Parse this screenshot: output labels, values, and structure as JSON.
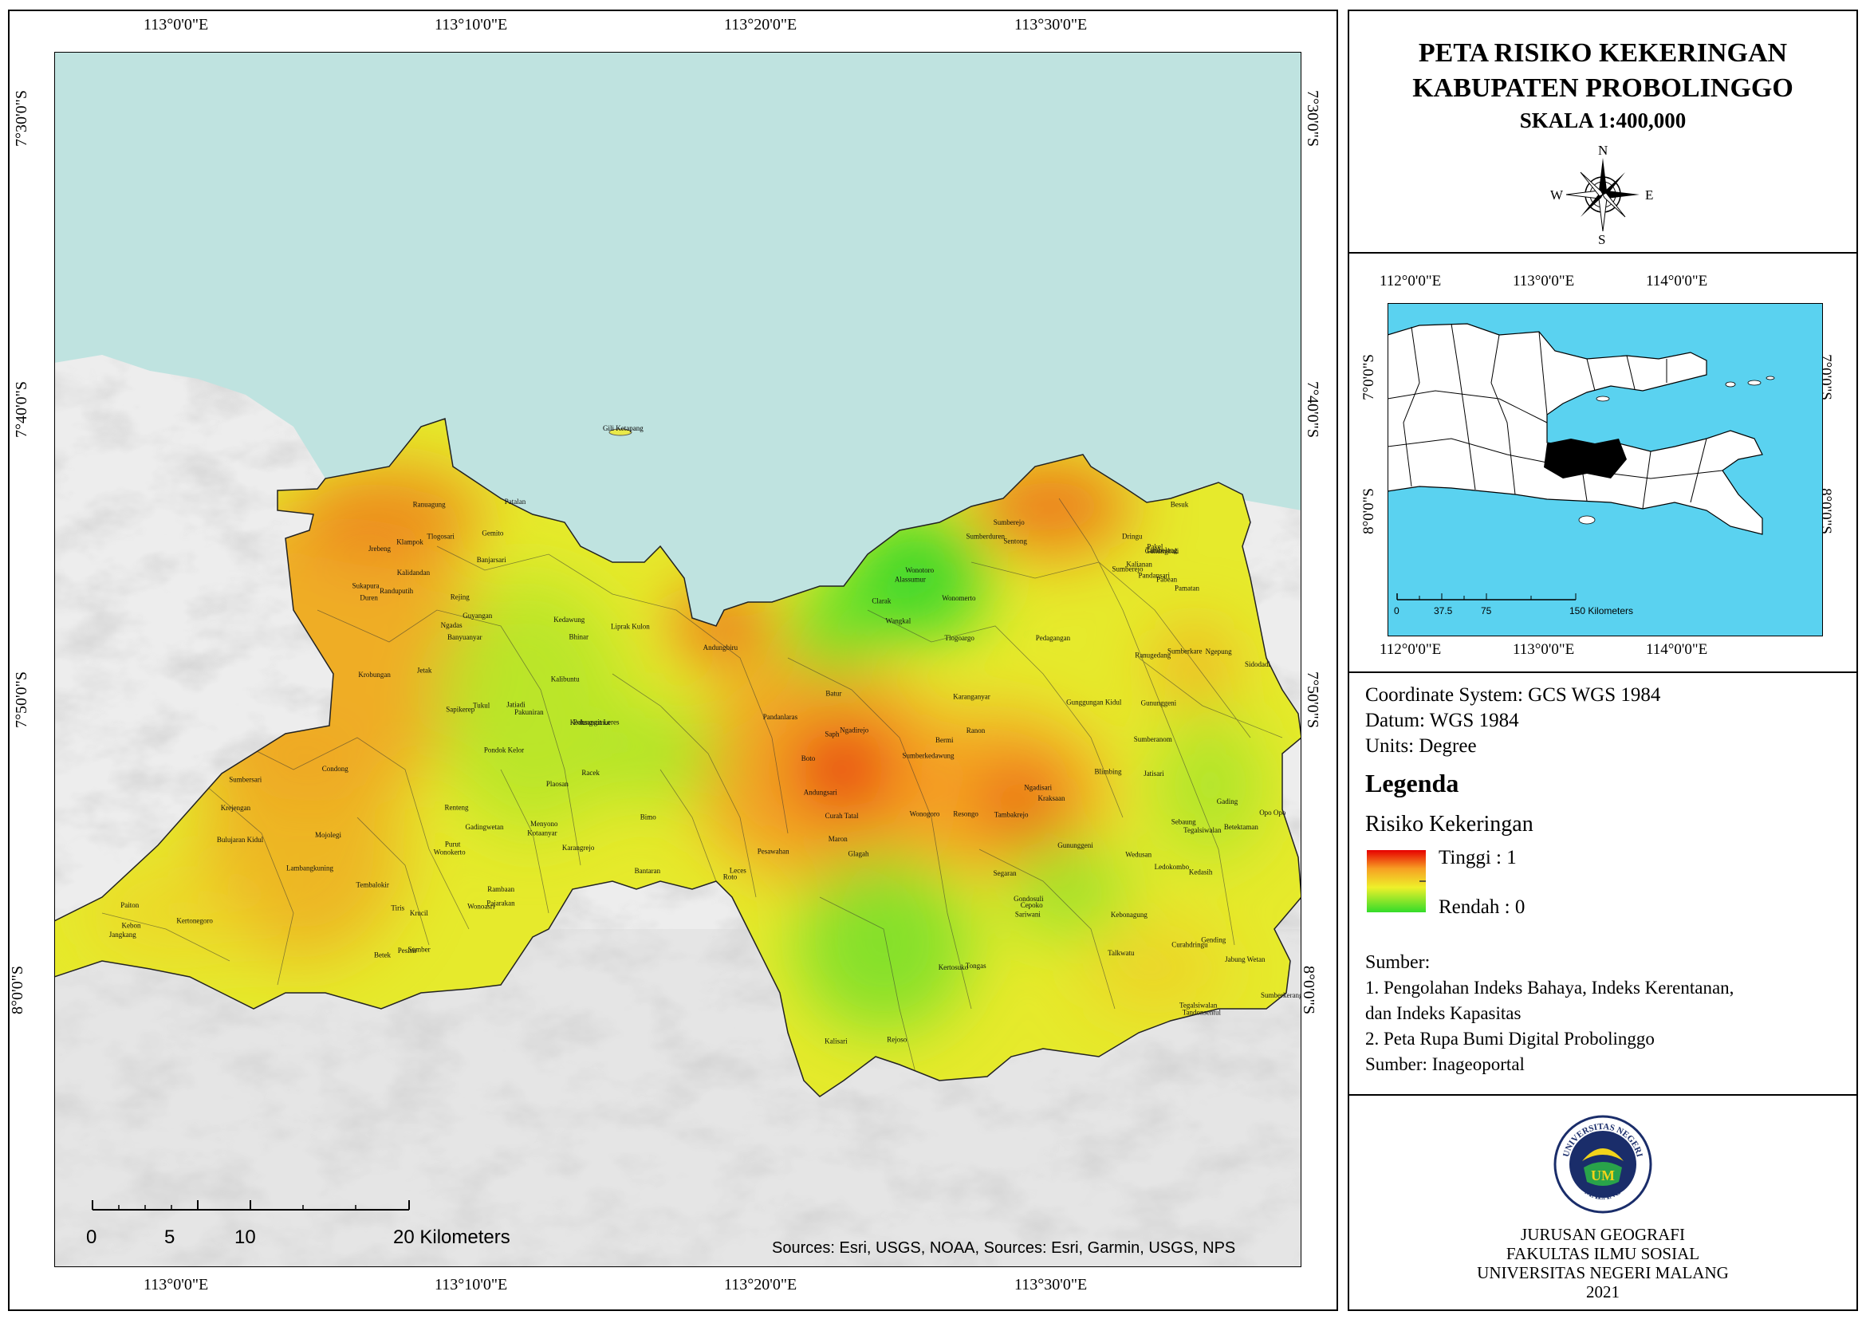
{
  "map": {
    "top_labels": [
      "113°0'0\"E",
      "113°10'0\"E",
      "113°20'0\"E",
      "113°30'0\"E"
    ],
    "bottom_labels": [
      "113°0'0\"E",
      "113°10'0\"E",
      "113°20'0\"E",
      "113°30'0\"E"
    ],
    "left_labels": [
      "7°30'0\"S",
      "7°40'0\"S",
      "7°50'0\"S",
      "8°0'0\"S"
    ],
    "right_labels": [
      "7°30'0\"S",
      "7°40'0\"S",
      "7°50'0\"S",
      "8°0'0\"S"
    ],
    "scalebar": {
      "ticks": [
        "0",
        "5",
        "10",
        "20 Kilometers"
      ]
    },
    "attribution": "Sources: Esri, USGS, NOAA, Sources: Esri, Garmin, USGS, NPS",
    "island_label": "Gili Ketapang",
    "village_labels": [
      "Tambakrejo",
      "Curahdringu",
      "Banjarsari",
      "Pesisir",
      "Klampok",
      "Sumberejo",
      "Pamatan",
      "Purut",
      "Sumberkare",
      "Tandonsentul",
      "Patalan",
      "Wonogoro",
      "Jrebeng",
      "Boto",
      "Menyono",
      "Wonoasri",
      "Sumbersari",
      "Lambangkuning",
      "Ngepung",
      "Saph",
      "Sukapura",
      "Resongo",
      "Kedawung",
      "Pakel",
      "Karangrejo",
      "Wonotoro",
      "Sapikerep",
      "Ngadisari",
      "Jetak",
      "Wonokerto",
      "Ngadirejo",
      "Sariwani",
      "Kedasih",
      "Gemito",
      "Tukul",
      "Sumber",
      "Cepoko",
      "Rambaan",
      "Ledokombo",
      "Pandansari",
      "Sumberanom",
      "Ngadas",
      "Gununggeni",
      "Jatisari",
      "Kalisari",
      "Pabean",
      "Segaran",
      "Tiris",
      "Andungsari",
      "Tlogosari",
      "Tlogoargo",
      "Andungbiru",
      "Ranugedang",
      "Ranuagung",
      "Jangkang",
      "Wedusan",
      "Racek",
      "Pesawahan",
      "Pedagangan",
      "Talkwatu",
      "Gununggeni",
      "Rejing",
      "Tegalsiwalan",
      "Gunungbali",
      "Krucil",
      "Tambelang",
      "Kertosuko",
      "Guyangan",
      "Roto",
      "Sumberduren",
      "Bermi",
      "Kalianan",
      "Betek",
      "Plaosan",
      "Betektaman",
      "Batur",
      "Kedungsumur",
      "Ranon",
      "Gunggungan Kidul",
      "Kalidandan",
      "Blimbing",
      "Bimo",
      "Kertonegoro",
      "Gondosuli",
      "Curah Tatal",
      "Tembalokir",
      "Bhinar",
      "Paiton",
      "Karanganyar",
      "Pondok Kelor",
      "Sumberejo",
      "Besuk",
      "Rejoso",
      "Tongas",
      "Pohsangit Leres",
      "Kraksaan",
      "Gending",
      "Dringu",
      "Bantaran",
      "Leces",
      "Banyuanyar",
      "Maron",
      "Kotaanyar",
      "Pakuniran",
      "Gading",
      "Krejengan",
      "Pajarakan",
      "Tegalsiwalan",
      "Wonomerto",
      "Bulujaran Kidul",
      "Liprak Kulon",
      "Sumberkerang",
      "Pandanlaras",
      "Condong",
      "Renteng",
      "Duren",
      "Kebon",
      "Wangkal",
      "Mojolegi",
      "Krobungan",
      "Gadingwetan",
      "Sentong",
      "Alassumur",
      "Kalibuntu",
      "Randuputih",
      "Jatiadi",
      "Opo Opo",
      "Kebonagung",
      "Sumberkedawung",
      "Clarak",
      "Sebaung",
      "Jabung Wetan",
      "Glagah",
      "Sidodadi"
    ]
  },
  "panel": {
    "title_line1": "PETA RISIKO KEKERINGAN",
    "title_line2": "KABUPATEN PROBOLINGGO",
    "scale": "SKALA  1:400,000",
    "compass": {
      "n": "N",
      "s": "S",
      "e": "E",
      "w": "W"
    },
    "inset": {
      "top_labels": [
        "112°0'0\"E",
        "113°0'0\"E",
        "114°0'0\"E"
      ],
      "bottom_labels": [
        "112°0'0\"E",
        "113°0'0\"E",
        "114°0'0\"E"
      ],
      "left_labels": [
        "7°0'0\"S",
        "8°0'0\"S"
      ],
      "right_labels": [
        "7°0'0\"S",
        "8°0'0\"S"
      ],
      "scalebar": [
        "0",
        "37.5",
        "75",
        "150 Kilometers"
      ]
    },
    "coordinate_system": "Coordinate System: GCS WGS 1984",
    "datum": "Datum: WGS 1984",
    "units": "Units: Degree",
    "legend_title": "Legenda",
    "legend_subtitle": "Risiko Kekeringan",
    "legend_high": "Tinggi : 1",
    "legend_low": "Rendah : 0",
    "sources_title": "Sumber:",
    "source1a": "1. Pengolahan Indeks Bahaya, Indeks Kerentanan,",
    "source1b": "dan Indeks Kapasitas",
    "source2": "2. Peta Rupa Bumi Digital Probolinggo",
    "source3": "Sumber: Inageoportal",
    "logo_text_top": "UNIVERSITAS NEGERI",
    "logo_text_bottom": "MALANG",
    "logo_mark": "UM",
    "footer1": "JURUSAN GEOGRAFI",
    "footer2": "FAKULTAS ILMU SOSIAL",
    "footer3": "UNIVERSITAS NEGERI MALANG",
    "footer4": "2021"
  },
  "colors": {
    "sea": "#bfe3e0",
    "land_bg": "#ededed",
    "risk_high": "#e60000",
    "risk_mid": "#f5a623",
    "risk_midlow": "#eaf02a",
    "risk_low": "#3fdc2a",
    "inset_sea": "#5ad2f0",
    "inset_focus": "#000000"
  }
}
